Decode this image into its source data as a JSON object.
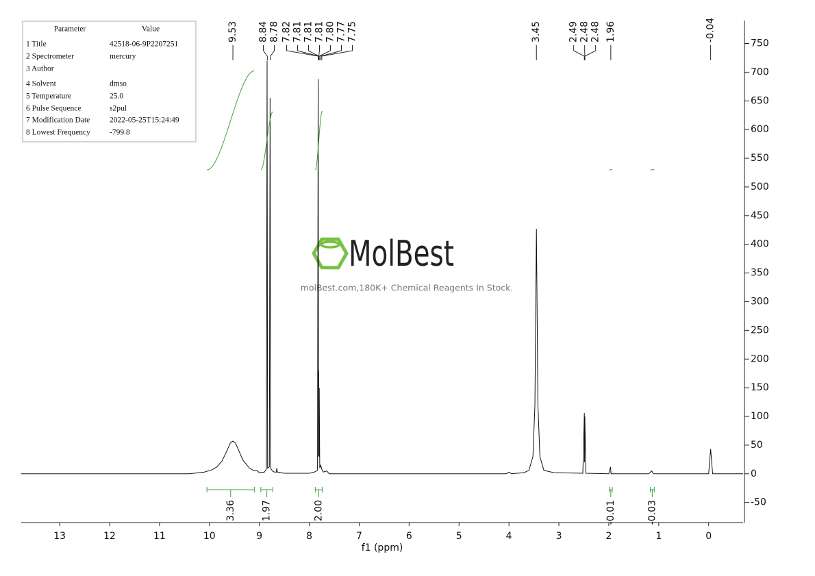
{
  "chart_data": {
    "type": "line",
    "x_label": "f1 (ppm)",
    "xlim": [
      13.77,
      -0.69
    ],
    "xticks": [
      13,
      12,
      11,
      10,
      9,
      8,
      7,
      6,
      5,
      4,
      3,
      2,
      1,
      0
    ],
    "ylim": [
      -85,
      790
    ],
    "yticks": [
      -50,
      0,
      50,
      100,
      150,
      200,
      250,
      300,
      350,
      400,
      450,
      500,
      550,
      600,
      650,
      700,
      750
    ],
    "color": "#111111",
    "integral_color": "#3aa535",
    "x": [
      13.77,
      10.4,
      10.1,
      9.95,
      9.85,
      9.75,
      9.65,
      9.58,
      9.53,
      9.48,
      9.42,
      9.33,
      9.2,
      9.1,
      9.05,
      9.0,
      8.9,
      8.86,
      8.845,
      8.835,
      8.8,
      8.785,
      8.775,
      8.74,
      8.7,
      8.66,
      8.65,
      8.64,
      8.5,
      8.0,
      7.9,
      7.835,
      7.822,
      7.815,
      7.81,
      7.805,
      7.8,
      7.79,
      7.77,
      7.75,
      7.72,
      7.65,
      7.6,
      4.05,
      4.0,
      3.95,
      3.7,
      3.6,
      3.52,
      3.48,
      3.45,
      3.42,
      3.38,
      3.3,
      3.1,
      2.52,
      2.49,
      2.485,
      2.48,
      2.46,
      2.0,
      1.965,
      1.955,
      1.2,
      1.14,
      1.12,
      1.1,
      0.0,
      -0.04,
      -0.08,
      -0.69
    ],
    "values": [
      0,
      0,
      3,
      7,
      12,
      22,
      40,
      54,
      57,
      54,
      42,
      24,
      10,
      5,
      6,
      2,
      3,
      8,
      720,
      10,
      12,
      655,
      10,
      5,
      3,
      3,
      10,
      3,
      1,
      1,
      3,
      6,
      688,
      30,
      180,
      30,
      150,
      10,
      15,
      8,
      3,
      5,
      0,
      0,
      3,
      0,
      2,
      6,
      30,
      120,
      427,
      120,
      30,
      6,
      2,
      1,
      106,
      20,
      100,
      1,
      0,
      12,
      0,
      0,
      5,
      2,
      0,
      0,
      43,
      0,
      0
    ],
    "peak_labels": [
      9.53,
      8.84,
      8.78,
      7.82,
      7.81,
      7.81,
      7.81,
      {
        "value": 7.8,
        "label": "7.80"
      },
      7.77,
      7.75,
      3.45,
      2.49,
      2.48,
      2.48,
      1.96,
      -0.04
    ],
    "integrals": {
      "ranges": [
        [
          10.05,
          9.1
        ],
        [
          8.97,
          8.73
        ],
        [
          7.88,
          7.74
        ],
        [
          1.99,
          1.93
        ],
        [
          1.17,
          1.09
        ]
      ],
      "values": [
        3.36,
        1.97,
        2.0,
        -0.01,
        -0.03
      ],
      "value_labels": [
        "3.36",
        "1.97",
        "2.00",
        "-0.01",
        "-0.03"
      ]
    },
    "parameters": {
      "headers": [
        "Parameter",
        "Value"
      ],
      "rows": [
        [
          "1 Title",
          "42518-06-9P2207251"
        ],
        [
          "2 Spectrometer",
          "mercury"
        ],
        [
          "3 Author"
        ],
        [
          "4 Solvent",
          "dmso"
        ],
        [
          "5 Temperature",
          "25.0"
        ],
        [
          "6 Pulse Sequence",
          "s2pul"
        ],
        [
          "7 Modification Date",
          "2022-05-25T15:24:49"
        ],
        [
          "8 Lowest Frequency",
          "-799.8"
        ]
      ]
    },
    "watermark": {
      "brand": "MolBest",
      "tagline": "molBest.com,180K+ Chemical Reagents In Stock."
    }
  }
}
